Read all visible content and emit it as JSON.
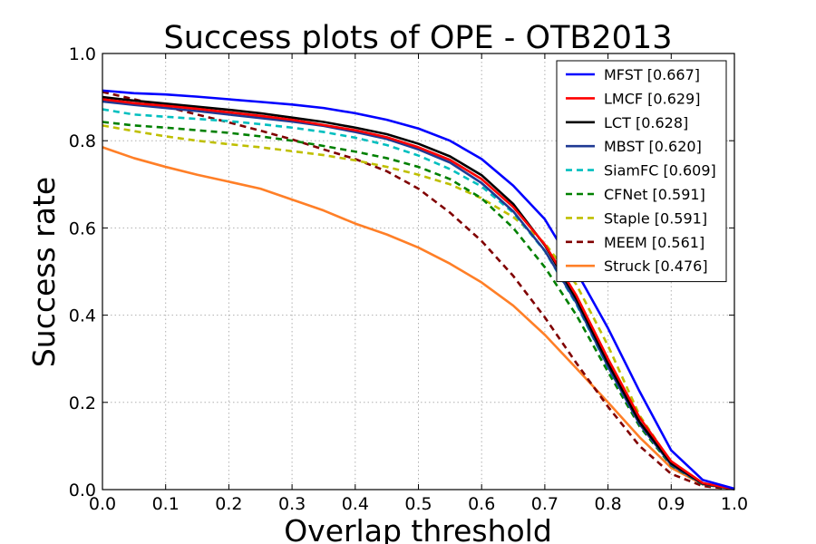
{
  "chart_data": {
    "type": "line",
    "title": "Success plots of OPE - OTB2013",
    "xlabel": "Overlap threshold",
    "ylabel": "Success rate",
    "xlim": [
      0.0,
      1.0
    ],
    "ylim": [
      0.0,
      1.0
    ],
    "grid": true,
    "legend_position": "top-right",
    "x_ticks": [
      "0.0",
      "0.1",
      "0.2",
      "0.3",
      "0.4",
      "0.5",
      "0.6",
      "0.7",
      "0.8",
      "0.9",
      "1.0"
    ],
    "y_ticks": [
      "0.0",
      "0.2",
      "0.4",
      "0.6",
      "0.8",
      "1.0"
    ],
    "x": [
      0.0,
      0.05,
      0.1,
      0.15,
      0.2,
      0.25,
      0.3,
      0.35,
      0.4,
      0.45,
      0.5,
      0.55,
      0.6,
      0.65,
      0.7,
      0.75,
      0.8,
      0.85,
      0.9,
      0.95,
      1.0
    ],
    "series": [
      {
        "name": "MFST [0.667]",
        "color": "#0000ff",
        "dash": "solid",
        "values": [
          0.915,
          0.909,
          0.906,
          0.901,
          0.895,
          0.889,
          0.883,
          0.875,
          0.863,
          0.848,
          0.828,
          0.8,
          0.758,
          0.697,
          0.62,
          0.5,
          0.37,
          0.225,
          0.09,
          0.022,
          0.002
        ]
      },
      {
        "name": "LMCF [0.629]",
        "color": "#ff0000",
        "dash": "solid",
        "values": [
          0.895,
          0.886,
          0.88,
          0.873,
          0.865,
          0.857,
          0.848,
          0.836,
          0.824,
          0.808,
          0.785,
          0.756,
          0.712,
          0.648,
          0.562,
          0.445,
          0.3,
          0.165,
          0.065,
          0.015,
          0.001
        ]
      },
      {
        "name": "LCT [0.628]",
        "color": "#000000",
        "dash": "solid",
        "values": [
          0.9,
          0.892,
          0.885,
          0.878,
          0.871,
          0.863,
          0.853,
          0.843,
          0.83,
          0.815,
          0.793,
          0.764,
          0.721,
          0.655,
          0.56,
          0.437,
          0.29,
          0.155,
          0.06,
          0.014,
          0.001
        ]
      },
      {
        "name": "MBST [0.620]",
        "color": "#1f3a93",
        "dash": "solid",
        "values": [
          0.89,
          0.882,
          0.875,
          0.868,
          0.86,
          0.852,
          0.844,
          0.834,
          0.82,
          0.804,
          0.78,
          0.75,
          0.703,
          0.638,
          0.548,
          0.428,
          0.282,
          0.15,
          0.057,
          0.013,
          0.001
        ]
      },
      {
        "name": "SiamFC [0.609]",
        "color": "#00bfbf",
        "dash": "dash",
        "values": [
          0.872,
          0.86,
          0.855,
          0.85,
          0.845,
          0.838,
          0.83,
          0.82,
          0.807,
          0.79,
          0.766,
          0.735,
          0.695,
          0.635,
          0.547,
          0.425,
          0.28,
          0.15,
          0.057,
          0.013,
          0.001
        ]
      },
      {
        "name": "CFNet [0.591]",
        "color": "#008000",
        "dash": "dash",
        "values": [
          0.843,
          0.835,
          0.83,
          0.824,
          0.818,
          0.81,
          0.8,
          0.788,
          0.775,
          0.76,
          0.74,
          0.712,
          0.668,
          0.6,
          0.51,
          0.4,
          0.27,
          0.145,
          0.055,
          0.012,
          0.001
        ]
      },
      {
        "name": "Staple [0.591]",
        "color": "#bfbf00",
        "dash": "dash",
        "values": [
          0.835,
          0.822,
          0.81,
          0.8,
          0.792,
          0.785,
          0.776,
          0.767,
          0.755,
          0.74,
          0.722,
          0.7,
          0.668,
          0.625,
          0.565,
          0.47,
          0.33,
          0.17,
          0.062,
          0.013,
          0.001
        ]
      },
      {
        "name": "MEEM [0.561]",
        "color": "#800000",
        "dash": "dash",
        "values": [
          0.912,
          0.895,
          0.878,
          0.86,
          0.842,
          0.823,
          0.803,
          0.78,
          0.758,
          0.73,
          0.69,
          0.635,
          0.57,
          0.49,
          0.395,
          0.29,
          0.19,
          0.1,
          0.036,
          0.008,
          0.001
        ]
      },
      {
        "name": "Struck [0.476]",
        "color": "#ff7f27",
        "dash": "solid",
        "values": [
          0.785,
          0.76,
          0.74,
          0.722,
          0.706,
          0.69,
          0.665,
          0.64,
          0.61,
          0.585,
          0.555,
          0.518,
          0.475,
          0.422,
          0.355,
          0.278,
          0.2,
          0.12,
          0.05,
          0.012,
          0.001
        ]
      }
    ]
  }
}
